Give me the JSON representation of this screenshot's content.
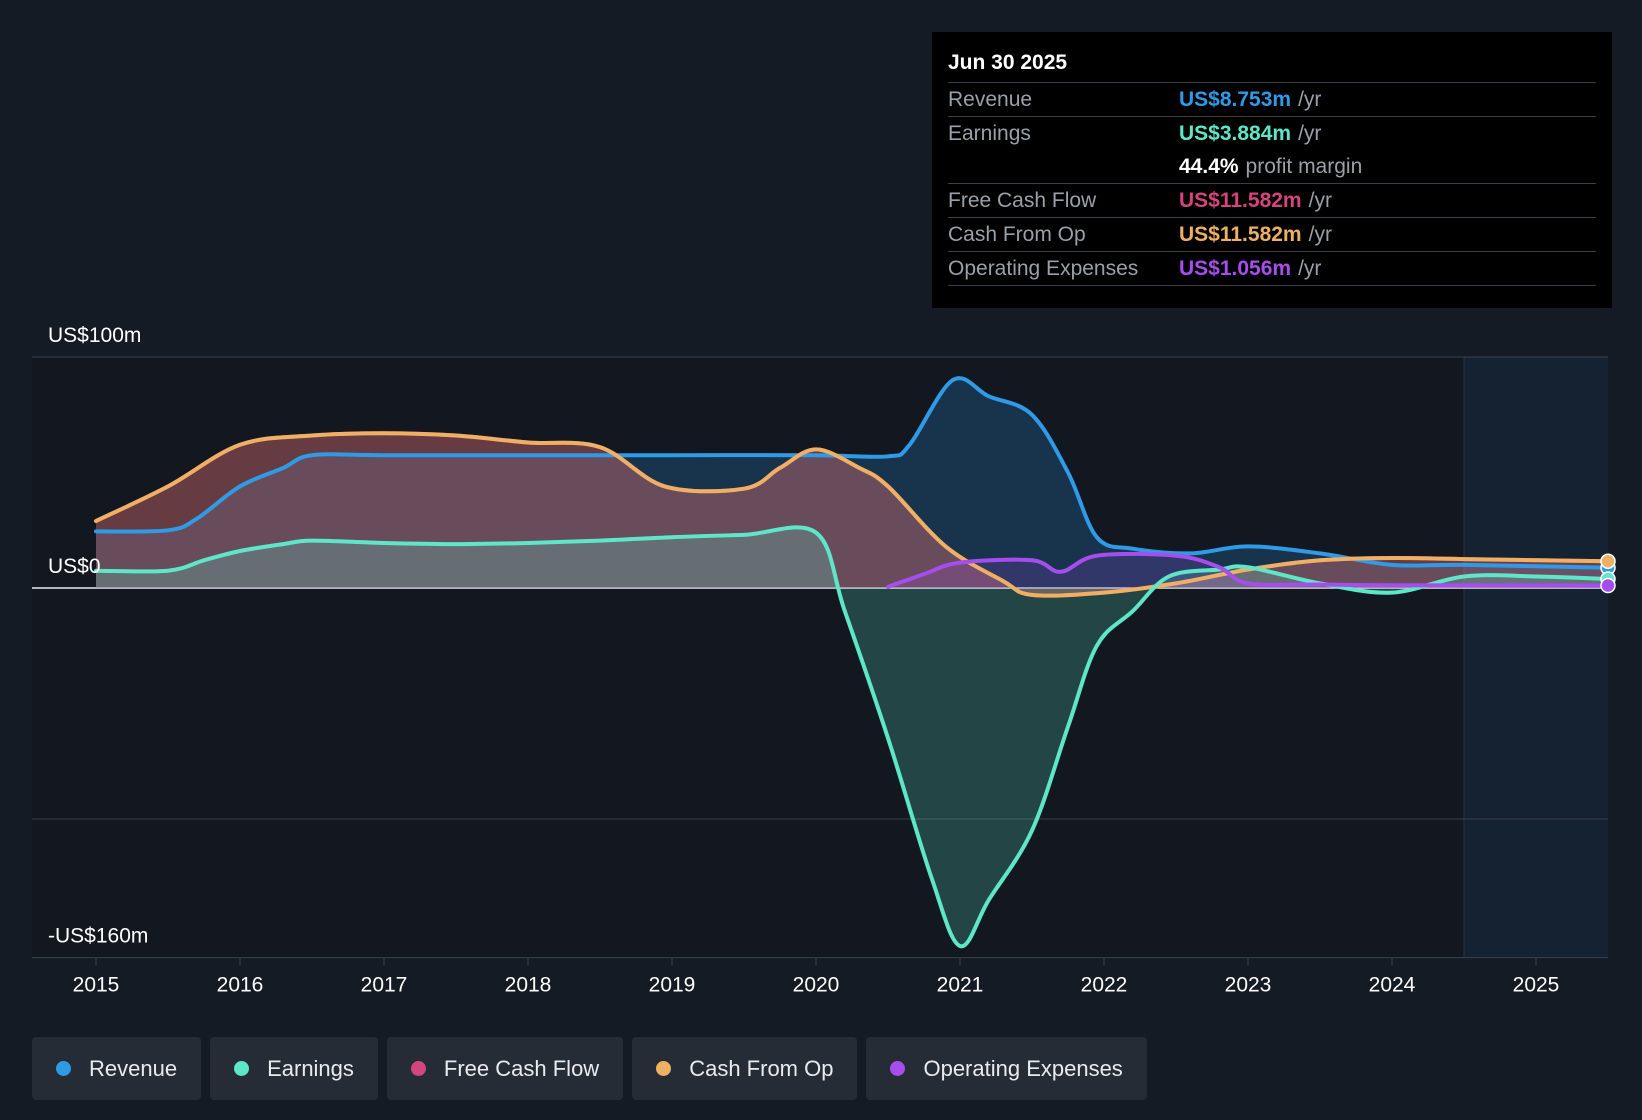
{
  "tooltip": {
    "date": "Jun 30 2025",
    "rows": [
      {
        "label": "Revenue",
        "value": "US$8.753m",
        "unit": "/yr",
        "color": "#2f9ae6"
      },
      {
        "label": "Earnings",
        "value": "US$3.884m",
        "unit": "/yr",
        "color": "#5ee6c8"
      },
      {
        "label": "Free Cash Flow",
        "value": "US$11.582m",
        "unit": "/yr",
        "color": "#d2457d"
      },
      {
        "label": "Cash From Op",
        "value": "US$11.582m",
        "unit": "/yr",
        "color": "#eeb063"
      },
      {
        "label": "Operating Expenses",
        "value": "US$1.056m",
        "unit": "/yr",
        "color": "#a64dee"
      }
    ],
    "profit_margin_value": "44.4%",
    "profit_margin_label": "profit margin"
  },
  "legend": [
    {
      "label": "Revenue",
      "color": "#2f9ae6"
    },
    {
      "label": "Earnings",
      "color": "#5ee6c8"
    },
    {
      "label": "Free Cash Flow",
      "color": "#d2457d"
    },
    {
      "label": "Cash From Op",
      "color": "#eeb063"
    },
    {
      "label": "Operating Expenses",
      "color": "#a64dee"
    }
  ],
  "chart_data": {
    "type": "line",
    "title": "",
    "y_top_label": "US$100m",
    "y_zero_label": "US$0",
    "y_bottom_label": "-US$160m",
    "ylim": [
      -160,
      100
    ],
    "xlim": [
      2015,
      2025.5
    ],
    "gridlines": [
      100,
      0,
      -100
    ],
    "x_ticks": [
      "2015",
      "2016",
      "2017",
      "2018",
      "2019",
      "2020",
      "2021",
      "2022",
      "2023",
      "2024",
      "2025"
    ],
    "forecast_start": 2024.5,
    "series": [
      {
        "name": "Revenue",
        "color": "#2f9ae6",
        "points": [
          [
            2015,
            24.5
          ],
          [
            2015.5,
            25
          ],
          [
            2015.7,
            30
          ],
          [
            2016,
            44
          ],
          [
            2016.3,
            52
          ],
          [
            2016.5,
            57.5
          ],
          [
            2017,
            57.5
          ],
          [
            2018,
            57.5
          ],
          [
            2019,
            57.5
          ],
          [
            2020,
            57.5
          ],
          [
            2020.5,
            57
          ],
          [
            2020.65,
            62
          ],
          [
            2020.95,
            90
          ],
          [
            2021.2,
            83
          ],
          [
            2021.5,
            75
          ],
          [
            2021.75,
            50
          ],
          [
            2021.95,
            22
          ],
          [
            2022.2,
            17
          ],
          [
            2022.6,
            15
          ],
          [
            2023,
            18
          ],
          [
            2023.5,
            15
          ],
          [
            2024,
            10
          ],
          [
            2024.5,
            10
          ],
          [
            2025.5,
            8.753
          ]
        ]
      },
      {
        "name": "Earnings",
        "color": "#5ee6c8",
        "points": [
          [
            2015,
            7.5
          ],
          [
            2015.5,
            7.5
          ],
          [
            2015.75,
            12
          ],
          [
            2016,
            16
          ],
          [
            2016.3,
            19
          ],
          [
            2016.5,
            20.5
          ],
          [
            2017,
            19.5
          ],
          [
            2017.5,
            19
          ],
          [
            2018,
            19.5
          ],
          [
            2018.5,
            20.5
          ],
          [
            2019,
            22
          ],
          [
            2019.5,
            23
          ],
          [
            2020,
            24
          ],
          [
            2020.2,
            -10
          ],
          [
            2020.5,
            -65
          ],
          [
            2020.8,
            -125
          ],
          [
            2021,
            -155
          ],
          [
            2021.2,
            -135
          ],
          [
            2021.5,
            -105
          ],
          [
            2021.75,
            -60
          ],
          [
            2021.95,
            -25
          ],
          [
            2022.2,
            -10
          ],
          [
            2022.45,
            5
          ],
          [
            2022.8,
            8
          ],
          [
            2023,
            9
          ],
          [
            2023.5,
            2
          ],
          [
            2024,
            -2
          ],
          [
            2024.5,
            5
          ],
          [
            2025,
            5
          ],
          [
            2025.5,
            3.884
          ]
        ]
      },
      {
        "name": "Free Cash Flow",
        "color": "#d2457d",
        "points": [
          [
            2015,
            29
          ],
          [
            2015.5,
            44
          ],
          [
            2016,
            62
          ],
          [
            2016.5,
            66
          ],
          [
            2017,
            67
          ],
          [
            2017.5,
            66
          ],
          [
            2018,
            63
          ],
          [
            2018.5,
            61
          ],
          [
            2018.95,
            44
          ],
          [
            2019.5,
            43
          ],
          [
            2019.75,
            52
          ],
          [
            2020,
            60
          ],
          [
            2020.3,
            52
          ],
          [
            2020.5,
            44
          ],
          [
            2020.9,
            18
          ],
          [
            2021.3,
            3
          ],
          [
            2021.5,
            -3
          ],
          [
            2022,
            -2
          ],
          [
            2022.5,
            2
          ],
          [
            2023,
            8
          ],
          [
            2023.5,
            12
          ],
          [
            2024,
            13
          ],
          [
            2024.5,
            12.5
          ],
          [
            2025.5,
            11.582
          ]
        ]
      },
      {
        "name": "Cash From Op",
        "color": "#eeb063",
        "points": [
          [
            2015,
            29
          ],
          [
            2015.5,
            44
          ],
          [
            2016,
            62
          ],
          [
            2016.5,
            66
          ],
          [
            2017,
            67
          ],
          [
            2017.5,
            66
          ],
          [
            2018,
            63
          ],
          [
            2018.5,
            61
          ],
          [
            2018.95,
            44
          ],
          [
            2019.5,
            43
          ],
          [
            2019.75,
            52
          ],
          [
            2020,
            60
          ],
          [
            2020.3,
            52
          ],
          [
            2020.5,
            44
          ],
          [
            2020.9,
            18
          ],
          [
            2021.3,
            3
          ],
          [
            2021.5,
            -3
          ],
          [
            2022,
            -2
          ],
          [
            2022.5,
            2
          ],
          [
            2023,
            8
          ],
          [
            2023.5,
            12
          ],
          [
            2024,
            13
          ],
          [
            2024.5,
            12.5
          ],
          [
            2025.5,
            11.582
          ]
        ]
      },
      {
        "name": "Operating Expenses",
        "color": "#a64dee",
        "points": [
          [
            2020.5,
            0.5
          ],
          [
            2020.75,
            6
          ],
          [
            2021,
            11
          ],
          [
            2021.5,
            12
          ],
          [
            2021.7,
            7
          ],
          [
            2021.95,
            14
          ],
          [
            2022.5,
            14
          ],
          [
            2022.8,
            9
          ],
          [
            2023,
            2
          ],
          [
            2023.5,
            1.5
          ],
          [
            2024,
            1.2
          ],
          [
            2025,
            1.1
          ],
          [
            2025.5,
            1.056
          ]
        ]
      }
    ]
  }
}
